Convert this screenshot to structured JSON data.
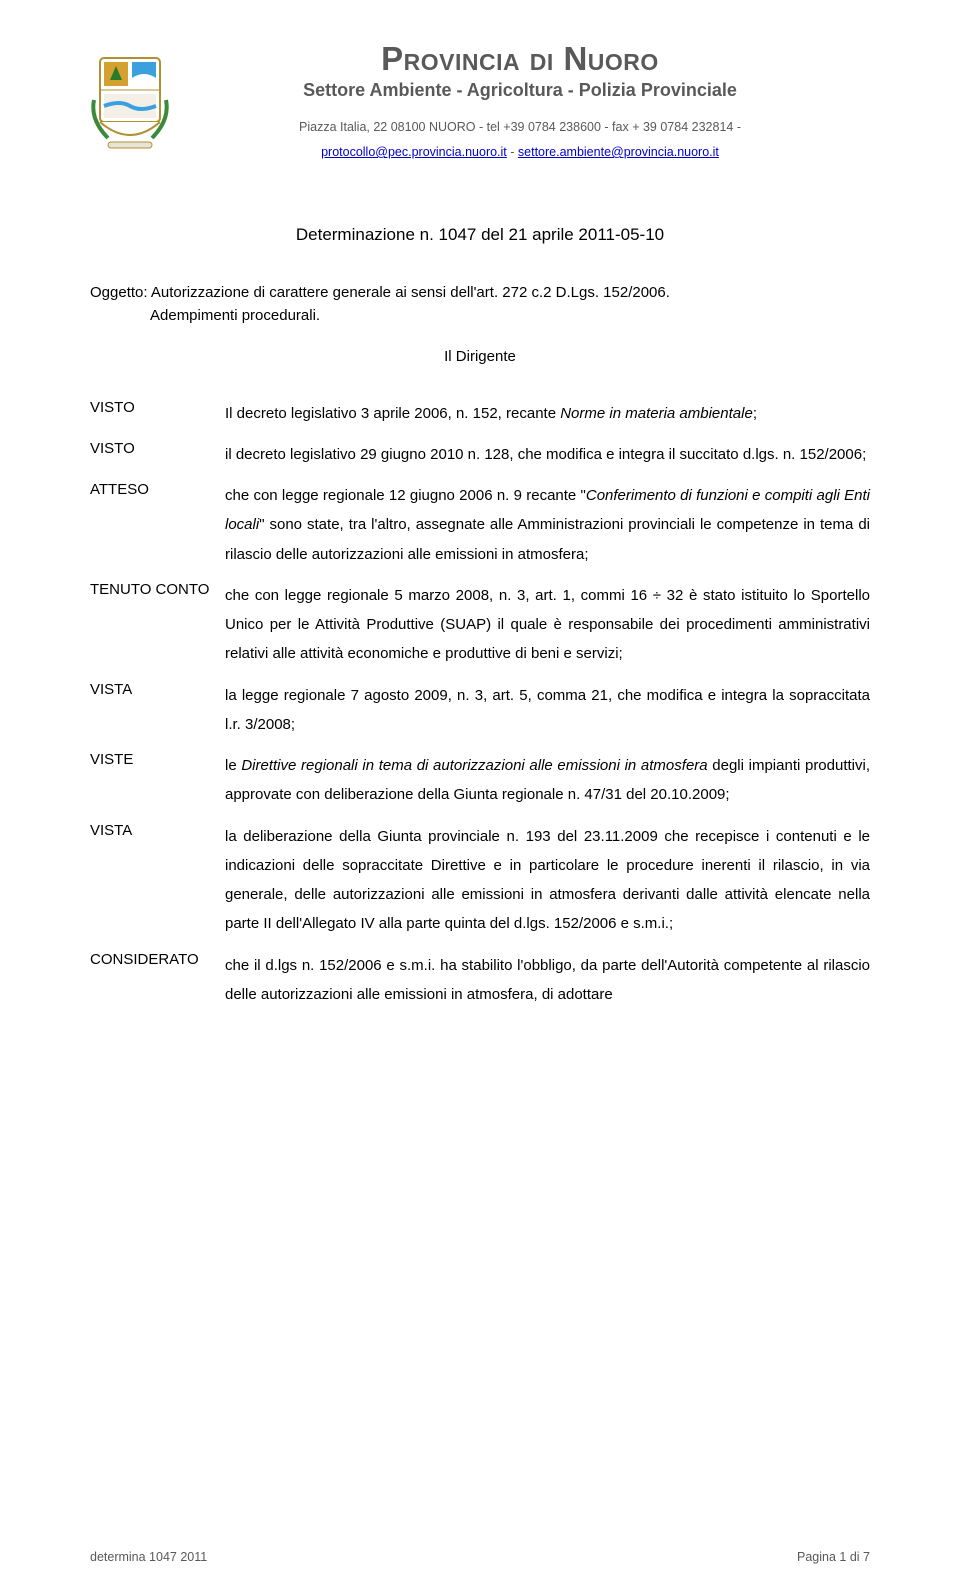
{
  "header": {
    "title": "Provincia di Nuoro",
    "subtitle": "Settore Ambiente - Agricoltura - Polizia Provinciale",
    "address_line": "Piazza Italia, 22 08100 NUORO - tel +39 0784 238600 - fax + 39 0784 232814 -",
    "email1": "protocollo@pec.provincia.nuoro.it",
    "email_sep": " - ",
    "email2": "settore.ambiente@provincia.nuoro.it"
  },
  "determinazione": "Determinazione n. 1047 del 21 aprile 2011-05-10",
  "oggetto": {
    "label": "Oggetto:",
    "text": " Autorizzazione di carattere generale ai sensi dell'art. 272 c.2 D.Lgs. 152/2006.",
    "text2": "Adempimenti procedurali."
  },
  "dirigente": "Il Dirigente",
  "rows": [
    {
      "key": "VISTO",
      "parts": [
        {
          "t": "Il decreto legislativo 3 aprile 2006, n. 152, recante "
        },
        {
          "t": "Norme in materia ambientale",
          "i": true
        },
        {
          "t": ";"
        }
      ]
    },
    {
      "key": "VISTO",
      "parts": [
        {
          "t": "il decreto legislativo 29 giugno 2010 n. 128, che modifica e integra il succitato d.lgs. n. 152/2006;"
        }
      ]
    },
    {
      "key": "ATTESO",
      "parts": [
        {
          "t": "che con legge regionale 12 giugno 2006 n. 9 recante \""
        },
        {
          "t": "Conferimento di funzioni e compiti agli Enti locali",
          "i": true
        },
        {
          "t": "\" sono state, tra l'altro, assegnate alle Amministrazioni provinciali le competenze in tema di rilascio delle autorizzazioni alle emissioni in atmosfera;"
        }
      ]
    },
    {
      "key": "TENUTO CONTO",
      "parts": [
        {
          "t": "che con legge regionale 5 marzo 2008, n. 3, art. 1, commi 16 ÷ 32 è stato istituito lo Sportello Unico per le Attività Produttive (SUAP) il quale è responsabile dei procedimenti amministrativi relativi alle attività economiche e produttive di beni e servizi;"
        }
      ]
    },
    {
      "key": "VISTA",
      "parts": [
        {
          "t": "la legge regionale 7 agosto 2009, n. 3, art. 5, comma 21, che modifica e integra la sopraccitata l.r. 3/2008;"
        }
      ]
    },
    {
      "key": "VISTE",
      "parts": [
        {
          "t": "le "
        },
        {
          "t": "Direttive regionali in tema di autorizzazioni alle emissioni in atmosfera",
          "i": true
        },
        {
          "t": " degli impianti produttivi, approvate con deliberazione della Giunta regionale n. 47/31 del 20.10.2009;"
        }
      ]
    },
    {
      "key": "VISTA",
      "parts": [
        {
          "t": "la deliberazione della Giunta provinciale n. 193  del 23.11.2009 che recepisce i contenuti e le indicazioni delle sopraccitate Direttive e in particolare le procedure inerenti il rilascio, in via generale, delle autorizzazioni alle emissioni in atmosfera derivanti dalle attività elencate nella parte II dell'Allegato IV alla parte quinta del d.lgs. 152/2006 e s.m.i.;"
        }
      ]
    },
    {
      "key": "CONSIDERATO",
      "parts": [
        {
          "t": "che il d.lgs n. 152/2006 e s.m.i. ha stabilito l'obbligo, da parte dell'Autorità competente al rilascio delle autorizzazioni alle emissioni in atmosfera, di adottare"
        }
      ]
    }
  ],
  "footer": {
    "left": "determina 1047 2011",
    "right": "Pagina 1 di 7"
  },
  "colors": {
    "header_text": "#595959",
    "link": "#0000cc",
    "body_text": "#000000",
    "background": "#ffffff"
  }
}
